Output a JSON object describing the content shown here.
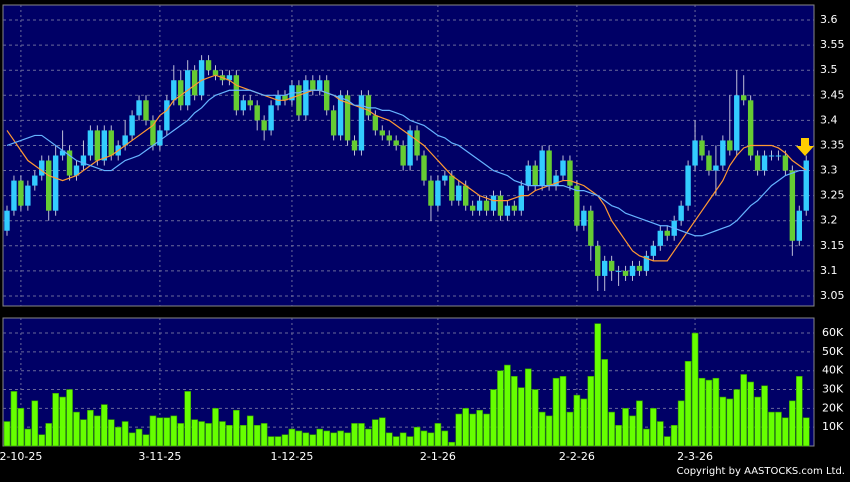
{
  "chart_data": {
    "type": "candlestick",
    "categories": [
      null,
      null,
      "2-10-25",
      null,
      null,
      null,
      null,
      null,
      null,
      null,
      null,
      null,
      null,
      null,
      null,
      null,
      null,
      null,
      null,
      null,
      null,
      null,
      "3-11-25",
      null,
      null,
      null,
      null,
      null,
      null,
      null,
      null,
      null,
      null,
      null,
      null,
      null,
      null,
      null,
      null,
      null,
      null,
      "1-12-25",
      null,
      null,
      null,
      null,
      null,
      null,
      null,
      null,
      null,
      null,
      null,
      null,
      null,
      null,
      null,
      null,
      null,
      null,
      null,
      null,
      "2-1-26",
      null,
      null,
      null,
      null,
      null,
      null,
      null,
      null,
      null,
      null,
      null,
      null,
      null,
      null,
      null,
      null,
      null,
      null,
      null,
      "2-2-26",
      null,
      null,
      null,
      null,
      null,
      null,
      null,
      null,
      null,
      null,
      null,
      null,
      null,
      null,
      null,
      null,
      "2-3-26",
      null,
      null,
      null,
      null,
      null,
      null,
      null,
      null,
      null,
      null,
      null,
      null,
      null,
      null,
      null,
      null
    ],
    "open": [
      3.18,
      3.22,
      3.28,
      3.23,
      3.27,
      3.29,
      3.32,
      3.22,
      3.33,
      3.34,
      3.29,
      3.31,
      3.33,
      3.38,
      3.32,
      3.38,
      3.33,
      3.35,
      3.37,
      3.41,
      3.44,
      3.4,
      3.35,
      3.38,
      3.44,
      3.48,
      3.43,
      3.5,
      3.45,
      3.52,
      3.5,
      3.49,
      3.48,
      3.49,
      3.42,
      3.44,
      3.43,
      3.4,
      3.38,
      3.43,
      3.45,
      3.44,
      3.47,
      3.41,
      3.48,
      3.46,
      3.48,
      3.42,
      3.37,
      3.45,
      3.36,
      3.34,
      3.45,
      3.41,
      3.38,
      3.37,
      3.36,
      3.35,
      3.31,
      3.38,
      3.33,
      3.28,
      3.23,
      3.28,
      3.29,
      3.24,
      3.27,
      3.23,
      3.22,
      3.24,
      3.22,
      3.25,
      3.21,
      3.23,
      3.22,
      3.27,
      3.31,
      3.27,
      3.34,
      3.27,
      3.29,
      3.32,
      3.27,
      3.19,
      3.22,
      3.15,
      3.09,
      3.12,
      3.1,
      3.1,
      3.09,
      3.11,
      3.1,
      3.13,
      3.15,
      3.18,
      3.17,
      3.2,
      3.23,
      3.31,
      3.36,
      3.33,
      3.3,
      3.31,
      3.36,
      3.34,
      3.45,
      3.44,
      3.33,
      3.3,
      3.33,
      3.33,
      3.33,
      3.3,
      3.16,
      3.22
    ],
    "high": [
      3.23,
      3.29,
      3.29,
      3.28,
      3.3,
      3.33,
      3.33,
      3.35,
      3.38,
      3.35,
      3.32,
      3.36,
      3.39,
      3.39,
      3.39,
      3.39,
      3.36,
      3.4,
      3.42,
      3.45,
      3.45,
      3.41,
      3.39,
      3.45,
      3.51,
      3.5,
      3.52,
      3.51,
      3.53,
      3.53,
      3.51,
      3.5,
      3.5,
      3.5,
      3.45,
      3.45,
      3.44,
      3.41,
      3.44,
      3.46,
      3.46,
      3.48,
      3.48,
      3.49,
      3.49,
      3.49,
      3.49,
      3.43,
      3.46,
      3.46,
      3.37,
      3.46,
      3.46,
      3.42,
      3.39,
      3.38,
      3.37,
      3.36,
      3.39,
      3.39,
      3.34,
      3.29,
      3.29,
      3.3,
      3.3,
      3.28,
      3.28,
      3.24,
      3.25,
      3.25,
      3.26,
      3.26,
      3.24,
      3.24,
      3.28,
      3.32,
      3.32,
      3.35,
      3.35,
      3.3,
      3.33,
      3.33,
      3.28,
      3.23,
      3.23,
      3.16,
      3.13,
      3.13,
      3.11,
      3.11,
      3.12,
      3.12,
      3.14,
      3.16,
      3.19,
      3.19,
      3.21,
      3.24,
      3.32,
      3.4,
      3.37,
      3.34,
      3.35,
      3.37,
      3.45,
      3.5,
      3.49,
      3.45,
      3.34,
      3.34,
      3.34,
      3.34,
      3.34,
      3.31,
      3.23,
      3.33
    ],
    "low": [
      3.17,
      3.21,
      3.22,
      3.22,
      3.26,
      3.28,
      3.2,
      3.21,
      3.32,
      3.28,
      3.28,
      3.3,
      3.32,
      3.31,
      3.31,
      3.32,
      3.32,
      3.34,
      3.36,
      3.4,
      3.39,
      3.34,
      3.34,
      3.37,
      3.43,
      3.42,
      3.42,
      3.44,
      3.44,
      3.49,
      3.48,
      3.47,
      3.47,
      3.41,
      3.41,
      3.42,
      3.38,
      3.36,
      3.37,
      3.42,
      3.43,
      3.43,
      3.4,
      3.4,
      3.45,
      3.45,
      3.41,
      3.36,
      3.36,
      3.35,
      3.33,
      3.33,
      3.4,
      3.37,
      3.36,
      3.35,
      3.34,
      3.3,
      3.3,
      3.32,
      3.27,
      3.2,
      3.22,
      3.27,
      3.23,
      3.23,
      3.22,
      3.21,
      3.21,
      3.21,
      3.21,
      3.2,
      3.2,
      3.21,
      3.21,
      3.26,
      3.26,
      3.26,
      3.26,
      3.26,
      3.28,
      3.26,
      3.18,
      3.18,
      3.12,
      3.06,
      3.06,
      3.08,
      3.07,
      3.08,
      3.08,
      3.09,
      3.09,
      3.12,
      3.14,
      3.16,
      3.16,
      3.19,
      3.22,
      3.3,
      3.32,
      3.29,
      3.25,
      3.3,
      3.33,
      3.33,
      3.43,
      3.32,
      3.29,
      3.29,
      3.32,
      3.32,
      3.29,
      3.13,
      3.15,
      3.21
    ],
    "close": [
      3.22,
      3.28,
      3.23,
      3.27,
      3.29,
      3.32,
      3.22,
      3.33,
      3.34,
      3.29,
      3.31,
      3.33,
      3.38,
      3.32,
      3.38,
      3.33,
      3.35,
      3.37,
      3.41,
      3.44,
      3.4,
      3.35,
      3.38,
      3.44,
      3.48,
      3.43,
      3.5,
      3.45,
      3.52,
      3.5,
      3.49,
      3.48,
      3.49,
      3.42,
      3.44,
      3.43,
      3.4,
      3.38,
      3.43,
      3.45,
      3.44,
      3.47,
      3.41,
      3.48,
      3.46,
      3.48,
      3.42,
      3.37,
      3.45,
      3.36,
      3.34,
      3.45,
      3.41,
      3.38,
      3.37,
      3.36,
      3.35,
      3.31,
      3.38,
      3.33,
      3.28,
      3.23,
      3.28,
      3.29,
      3.24,
      3.27,
      3.23,
      3.22,
      3.24,
      3.22,
      3.25,
      3.21,
      3.23,
      3.22,
      3.27,
      3.31,
      3.27,
      3.34,
      3.27,
      3.29,
      3.32,
      3.27,
      3.19,
      3.22,
      3.15,
      3.09,
      3.12,
      3.1,
      3.1,
      3.09,
      3.11,
      3.1,
      3.13,
      3.15,
      3.18,
      3.17,
      3.2,
      3.23,
      3.31,
      3.36,
      3.33,
      3.3,
      3.31,
      3.36,
      3.34,
      3.45,
      3.44,
      3.33,
      3.3,
      3.33,
      3.33,
      3.33,
      3.3,
      3.16,
      3.22,
      3.32
    ],
    "up_color": "#33ccff",
    "down_color": "#66cc33",
    "ylim": [
      3.03,
      3.63
    ],
    "yticks": [
      3.05,
      3.1,
      3.15,
      3.2,
      3.25,
      3.3,
      3.35,
      3.4,
      3.45,
      3.5,
      3.55,
      3.6
    ],
    "grid": true,
    "moving_averages": [
      {
        "color": "#ff9933",
        "values": [
          3.38,
          3.36,
          3.34,
          3.32,
          3.31,
          3.3,
          3.29,
          3.285,
          3.28,
          3.285,
          3.29,
          3.3,
          3.31,
          3.32,
          3.325,
          3.33,
          3.34,
          3.35,
          3.36,
          3.37,
          3.38,
          3.39,
          3.41,
          3.42,
          3.44,
          3.45,
          3.46,
          3.47,
          3.48,
          3.485,
          3.49,
          3.485,
          3.48,
          3.47,
          3.465,
          3.46,
          3.455,
          3.45,
          3.445,
          3.44,
          3.44,
          3.445,
          3.45,
          3.455,
          3.46,
          3.46,
          3.455,
          3.45,
          3.44,
          3.435,
          3.43,
          3.425,
          3.42,
          3.41,
          3.405,
          3.4,
          3.39,
          3.38,
          3.37,
          3.36,
          3.35,
          3.335,
          3.32,
          3.305,
          3.29,
          3.28,
          3.27,
          3.26,
          3.25,
          3.245,
          3.24,
          3.24,
          3.24,
          3.245,
          3.25,
          3.25,
          3.26,
          3.265,
          3.27,
          3.275,
          3.28,
          3.28,
          3.275,
          3.27,
          3.26,
          3.25,
          3.23,
          3.2,
          3.18,
          3.16,
          3.14,
          3.13,
          3.125,
          3.12,
          3.12,
          3.12,
          3.14,
          3.16,
          3.18,
          3.2,
          3.22,
          3.24,
          3.26,
          3.28,
          3.31,
          3.33,
          3.345,
          3.35,
          3.35,
          3.35,
          3.35,
          3.345,
          3.335,
          3.32,
          3.31,
          3.3
        ]
      },
      {
        "color": "#66b3ff",
        "values": [
          3.35,
          3.355,
          3.36,
          3.365,
          3.37,
          3.37,
          3.36,
          3.35,
          3.34,
          3.33,
          3.32,
          3.315,
          3.31,
          3.305,
          3.3,
          3.3,
          3.31,
          3.32,
          3.325,
          3.33,
          3.34,
          3.35,
          3.36,
          3.37,
          3.38,
          3.39,
          3.4,
          3.415,
          3.425,
          3.44,
          3.45,
          3.455,
          3.46,
          3.46,
          3.46,
          3.46,
          3.455,
          3.45,
          3.45,
          3.45,
          3.45,
          3.455,
          3.455,
          3.46,
          3.46,
          3.46,
          3.455,
          3.45,
          3.445,
          3.44,
          3.43,
          3.43,
          3.425,
          3.425,
          3.42,
          3.42,
          3.415,
          3.41,
          3.4,
          3.395,
          3.39,
          3.38,
          3.37,
          3.365,
          3.355,
          3.35,
          3.34,
          3.33,
          3.32,
          3.31,
          3.3,
          3.295,
          3.29,
          3.28,
          3.275,
          3.27,
          3.27,
          3.27,
          3.27,
          3.27,
          3.27,
          3.265,
          3.26,
          3.26,
          3.255,
          3.25,
          3.24,
          3.23,
          3.225,
          3.215,
          3.21,
          3.205,
          3.2,
          3.195,
          3.19,
          3.19,
          3.185,
          3.18,
          3.175,
          3.17,
          3.17,
          3.175,
          3.18,
          3.185,
          3.19,
          3.2,
          3.215,
          3.23,
          3.24,
          3.255,
          3.27,
          3.28,
          3.29,
          3.295,
          3.3,
          3.3
        ]
      }
    ],
    "volume": {
      "color": "#66ff00",
      "values": [
        13000,
        29000,
        20000,
        9000,
        24000,
        6000,
        12000,
        28000,
        26000,
        30000,
        18000,
        14000,
        19000,
        16000,
        22000,
        14000,
        10000,
        13000,
        7000,
        9000,
        6000,
        16000,
        15000,
        15000,
        16000,
        12000,
        29000,
        14000,
        13000,
        12000,
        20000,
        13000,
        11000,
        19000,
        11000,
        16000,
        11000,
        12000,
        5000,
        5000,
        6000,
        9000,
        8000,
        7000,
        6000,
        9000,
        8000,
        7000,
        8000,
        7000,
        12000,
        12000,
        9000,
        14000,
        15000,
        7000,
        5000,
        7000,
        5000,
        10000,
        8000,
        7000,
        12000,
        8000,
        2000,
        17000,
        20000,
        17000,
        19000,
        17000,
        30000,
        40000,
        43000,
        37000,
        31000,
        41000,
        30000,
        18000,
        16000,
        36000,
        37000,
        18000,
        27000,
        25000,
        37000,
        65000,
        46000,
        18000,
        11000,
        20000,
        16000,
        24000,
        9000,
        20000,
        13000,
        5000,
        11000,
        24000,
        45000,
        60000,
        36000,
        35000,
        36000,
        26000,
        25000,
        30000,
        38000,
        34000,
        26000,
        32000,
        18000,
        18000,
        15000,
        24000,
        37000,
        15000
      ],
      "ylim": [
        0,
        68000
      ],
      "yticks": [
        {
          "value": 10000,
          "label": "10K"
        },
        {
          "value": 20000,
          "label": "20K"
        },
        {
          "value": 30000,
          "label": "30K"
        },
        {
          "value": 40000,
          "label": "40K"
        },
        {
          "value": 50000,
          "label": "50K"
        },
        {
          "value": 60000,
          "label": "60K"
        }
      ]
    },
    "footer": "Copyright by AASTOCKS.com Ltd."
  }
}
